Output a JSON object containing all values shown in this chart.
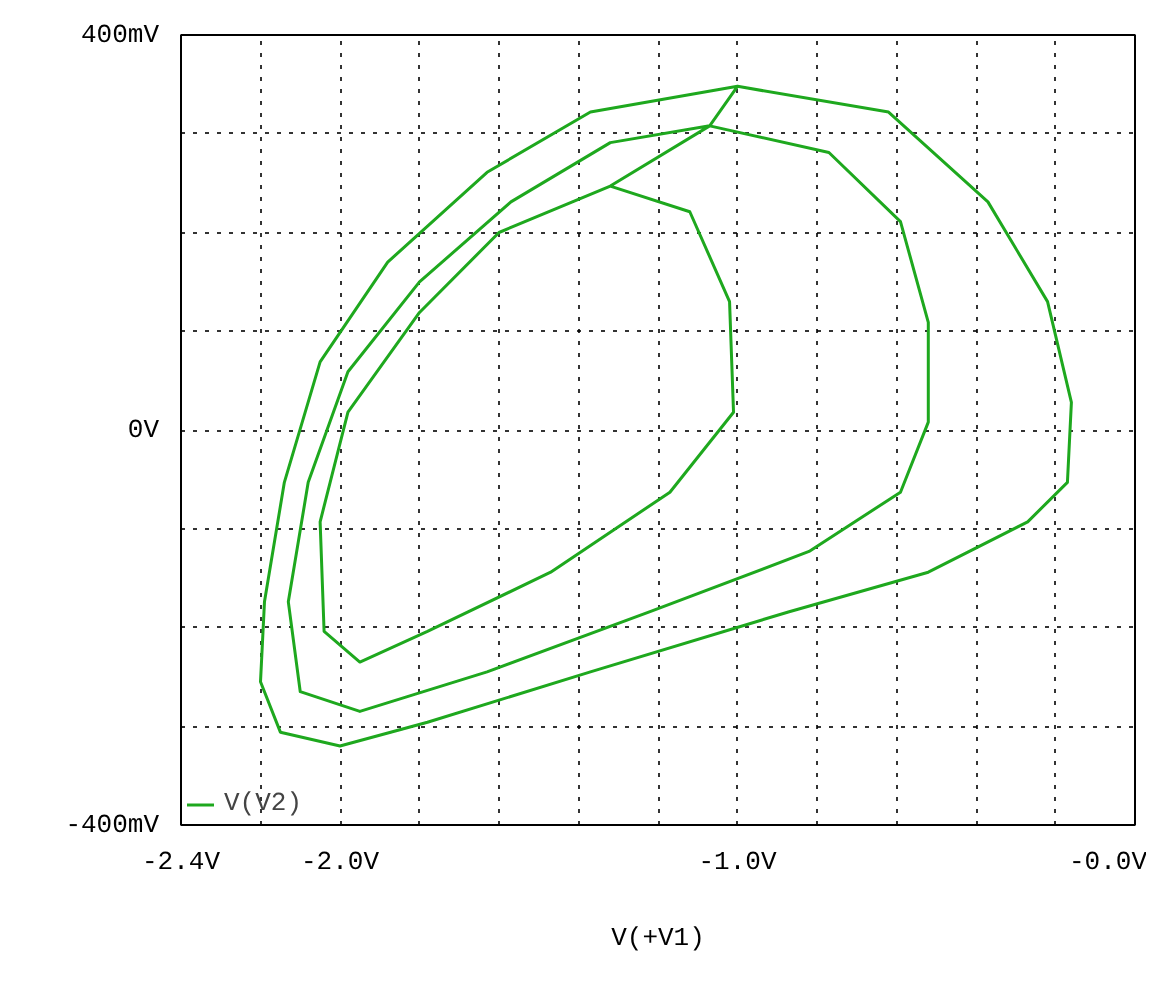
{
  "chart_data": {
    "type": "line",
    "xlabel": "V(+V1)",
    "legend": "bottom left",
    "grid": true,
    "marker": "none",
    "line_style": "solid",
    "xlim": [
      -2.4,
      0
    ],
    "ylim": [
      -400,
      400
    ],
    "xticks": [
      {
        "value": -2.4,
        "label": "-2.4V"
      },
      {
        "value": -2.2,
        "label": null
      },
      {
        "value": -2.0,
        "label": "-2.0V"
      },
      {
        "value": -1.8,
        "label": null
      },
      {
        "value": -1.6,
        "label": null
      },
      {
        "value": -1.4,
        "label": null
      },
      {
        "value": -1.2,
        "label": null
      },
      {
        "value": -1.0,
        "label": "-1.0V"
      },
      {
        "value": -0.8,
        "label": null
      },
      {
        "value": -0.6,
        "label": null
      },
      {
        "value": -0.4,
        "label": null
      },
      {
        "value": -0.2,
        "label": null
      },
      {
        "value": 0,
        "label": "-0.0V"
      }
    ],
    "yticks": [
      {
        "value": -400,
        "label": "-400mV"
      },
      {
        "value": -300,
        "label": null
      },
      {
        "value": -200,
        "label": null
      },
      {
        "value": -100,
        "label": null
      },
      {
        "value": 0,
        "label": "0V"
      },
      {
        "value": 100,
        "label": null
      },
      {
        "value": 200,
        "label": null
      },
      {
        "value": 300,
        "label": null
      },
      {
        "value": 400,
        "label": "400mV"
      }
    ],
    "series": [
      {
        "name": "V(V2)",
        "color": "#1ea81e",
        "x": [
          -1.32,
          -1.12,
          -1.02,
          -1.01,
          -1.17,
          -1.47,
          -1.78,
          -1.95,
          -2.04,
          -2.05,
          -1.98,
          -1.8,
          -1.6,
          -1.32,
          -1.07,
          -0.77,
          -0.59,
          -0.52,
          -0.52,
          -0.59,
          -0.82,
          -1.22,
          -1.63,
          -1.95,
          -2.1,
          -2.13,
          -2.08,
          -1.98,
          -1.8,
          -1.57,
          -1.32,
          -1.07,
          -1.0,
          -0.62,
          -0.37,
          -0.22,
          -0.16,
          -0.17,
          -0.27,
          -0.52,
          -0.87,
          -1.37,
          -1.78,
          -2.0,
          -2.15,
          -2.2,
          -2.19,
          -2.14,
          -2.05,
          -1.88,
          -1.63,
          -1.37,
          -1.0
        ],
        "values": [
          247,
          221,
          130,
          18,
          -63,
          -144,
          -204,
          -235,
          -204,
          -93,
          18,
          119,
          200,
          247,
          308,
          281,
          211,
          109,
          8,
          -63,
          -123,
          -184,
          -245,
          -285,
          -265,
          -174,
          -53,
          59,
          150,
          231,
          291,
          308,
          348,
          322,
          231,
          130,
          28,
          -53,
          -93,
          -144,
          -184,
          -245,
          -296,
          -320,
          -306,
          -255,
          -174,
          -53,
          69,
          170,
          261,
          322,
          348
        ]
      }
    ]
  }
}
